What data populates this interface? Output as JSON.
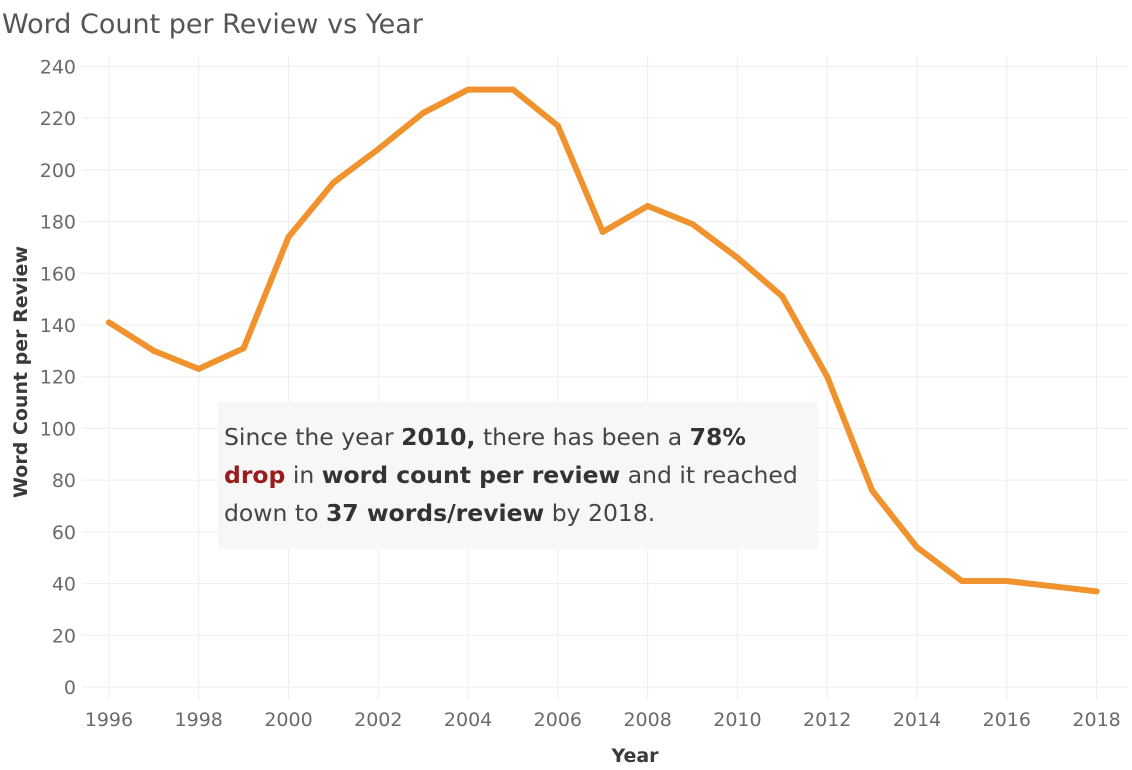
{
  "chart_data": {
    "type": "line",
    "title": "Word Count per Review vs Year",
    "xlabel": "Year",
    "ylabel": "Word Count per Review",
    "x": [
      1996,
      1997,
      1998,
      1999,
      2000,
      2001,
      2002,
      2003,
      2004,
      2005,
      2006,
      2007,
      2008,
      2009,
      2010,
      2011,
      2012,
      2013,
      2014,
      2015,
      2016,
      2017,
      2018
    ],
    "series": [
      {
        "values": [
          141,
          130,
          123,
          131,
          174,
          195,
          208,
          222,
          231,
          231,
          217,
          176,
          186,
          179,
          166,
          151,
          120,
          76,
          54,
          41,
          41,
          39,
          37
        ],
        "color": "#f0922e"
      }
    ],
    "xticks": [
      "1996",
      "1998",
      "2000",
      "2002",
      "2004",
      "2006",
      "2008",
      "2010",
      "2012",
      "2014",
      "2016",
      "2018"
    ],
    "yticks": [
      "0",
      "20",
      "40",
      "60",
      "80",
      "100",
      "120",
      "140",
      "160",
      "180",
      "200",
      "220",
      "240"
    ],
    "xlim": [
      1995.4,
      2018.7
    ],
    "ylim": [
      -5,
      244
    ],
    "grid": true,
    "legend": "none",
    "annotation": {
      "part1": "Since the year ",
      "bold1": "2010,",
      "part2": " there has been a ",
      "bold2": "78%",
      "accent": "drop",
      "part3": " in ",
      "bold3": "word count per review",
      "part4": " and it reached down to ",
      "bold4": "37 words/review",
      "part5": " by 2018."
    }
  }
}
